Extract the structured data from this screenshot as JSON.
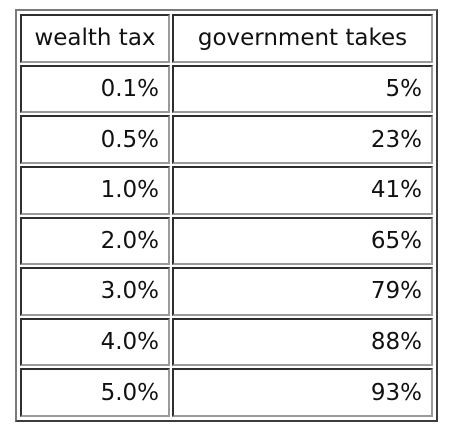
{
  "table": {
    "headers": [
      "wealth tax",
      "government takes"
    ],
    "rows": [
      [
        "0.1%",
        "5%"
      ],
      [
        "0.5%",
        "23%"
      ],
      [
        "1.0%",
        "41%"
      ],
      [
        "2.0%",
        "65%"
      ],
      [
        "3.0%",
        "79%"
      ],
      [
        "4.0%",
        "88%"
      ],
      [
        "5.0%",
        "93%"
      ]
    ]
  }
}
